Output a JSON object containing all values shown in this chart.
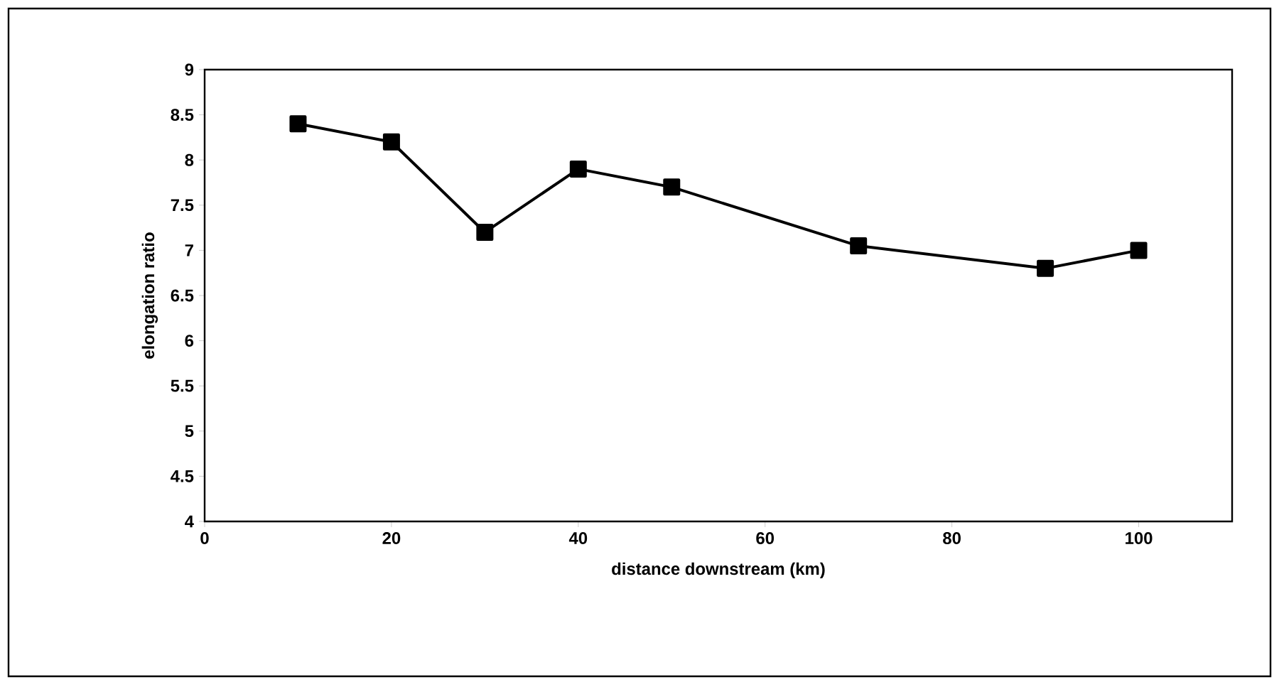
{
  "chart_data": {
    "type": "line",
    "xlabel": "distance downstream (km)",
    "ylabel": "elongation ratio",
    "x": [
      10,
      20,
      30,
      40,
      50,
      70,
      90,
      100
    ],
    "series": [
      {
        "color": "#000000",
        "values": [
          8.4,
          8.2,
          7.2,
          7.9,
          7.7,
          7.05,
          6.8,
          7.0
        ]
      }
    ],
    "xlim": [
      0,
      110
    ],
    "xticks": [
      0,
      20,
      40,
      60,
      80,
      100
    ],
    "ylim": [
      4,
      9
    ],
    "yticks": [
      4,
      4.5,
      5,
      5.5,
      6,
      6.5,
      7,
      7.5,
      8,
      8.5,
      9
    ],
    "marker": "square",
    "line_style": "solid"
  }
}
